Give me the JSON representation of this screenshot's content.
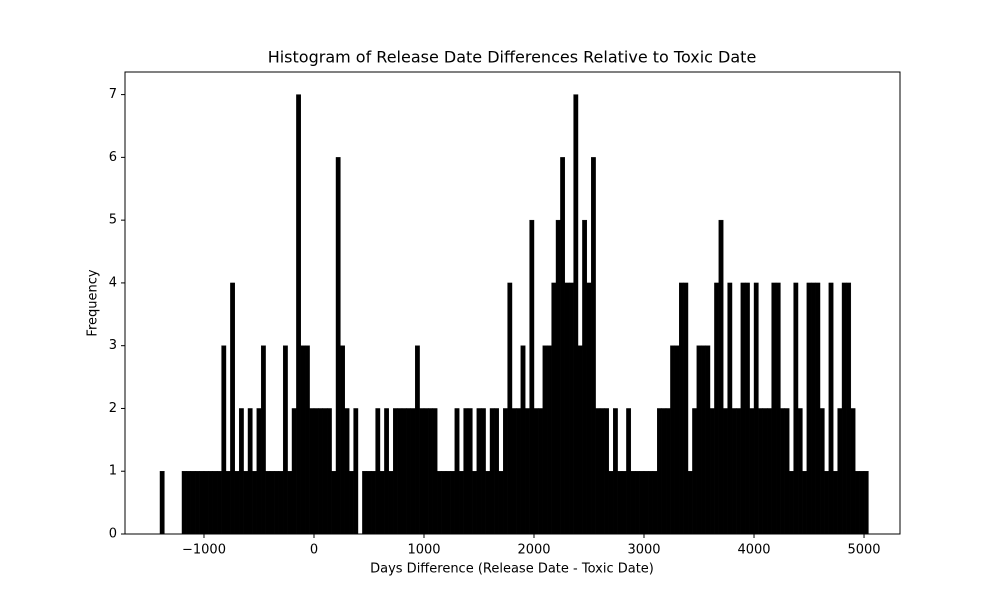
{
  "chart_data": {
    "type": "histogram",
    "title": "Histogram of Release Date Differences Relative to Toxic Date",
    "x_label": "Days Difference (Release Date - Toxic Date)",
    "y_label": "Frequency",
    "color": "#000000",
    "bins": [
      -1400,
      -1360,
      -1320,
      -1280,
      -1240,
      -1200,
      -1160,
      -1120,
      -1080,
      -1040,
      -1000,
      -960,
      -920,
      -880,
      -840,
      -800,
      -760,
      -720,
      -680,
      -640,
      -600,
      -560,
      -520,
      -480,
      -440,
      -400,
      -360,
      -320,
      -280,
      -240,
      -200,
      -160,
      -120,
      -80,
      -40,
      0,
      40,
      80,
      120,
      160,
      200,
      240,
      280,
      320,
      360,
      400,
      440,
      480,
      520,
      560,
      600,
      640,
      680,
      720,
      760,
      800,
      840,
      880,
      920,
      960,
      1000,
      1040,
      1080,
      1120,
      1160,
      1200,
      1240,
      1280,
      1320,
      1360,
      1400,
      1440,
      1480,
      1520,
      1560,
      1600,
      1640,
      1680,
      1720,
      1760,
      1800,
      1840,
      1880,
      1920,
      1960,
      2000,
      2040,
      2080,
      2120,
      2160,
      2200,
      2240,
      2280,
      2320,
      2360,
      2400,
      2440,
      2480,
      2520,
      2560,
      2600,
      2640,
      2680,
      2720,
      2760,
      2800,
      2840,
      2880,
      2920,
      2960,
      3000,
      3040,
      3080,
      3120,
      3160,
      3200,
      3240,
      3280,
      3320,
      3360,
      3400,
      3440,
      3480,
      3520,
      3560,
      3600,
      3640,
      3680,
      3720,
      3760,
      3800,
      3840,
      3880,
      3920,
      3960,
      4000,
      4040,
      4080,
      4120,
      4160,
      4200,
      4240,
      4280,
      4320,
      4360,
      4400,
      4440,
      4480,
      4520,
      4560,
      4600,
      4640,
      4680,
      4720,
      4760,
      4800,
      4840,
      4880,
      4920,
      4960,
      5000,
      5040
    ],
    "values": [
      1,
      0,
      0,
      0,
      0,
      1,
      1,
      1,
      1,
      1,
      1,
      1,
      1,
      1,
      3,
      1,
      4,
      1,
      2,
      1,
      2,
      1,
      2,
      3,
      1,
      1,
      1,
      1,
      3,
      1,
      2,
      7,
      3,
      3,
      2,
      2,
      2,
      2,
      2,
      1,
      6,
      3,
      2,
      1,
      2,
      0,
      1,
      1,
      1,
      2,
      1,
      2,
      1,
      2,
      2,
      2,
      2,
      2,
      3,
      2,
      2,
      2,
      2,
      1,
      1,
      1,
      1,
      2,
      1,
      2,
      2,
      1,
      2,
      2,
      1,
      2,
      2,
      1,
      2,
      4,
      2,
      2,
      3,
      2,
      5,
      2,
      2,
      3,
      3,
      4,
      5,
      6,
      4,
      4,
      7,
      3,
      5,
      4,
      6,
      2,
      2,
      2,
      1,
      2,
      1,
      1,
      2,
      1,
      1,
      1,
      1,
      1,
      1,
      2,
      2,
      2,
      3,
      3,
      4,
      4,
      1,
      2,
      3,
      3,
      3,
      2,
      4,
      5,
      2,
      4,
      2,
      2,
      4,
      4,
      2,
      4,
      2,
      2,
      2,
      4,
      4,
      2,
      2,
      1,
      4,
      2,
      1,
      4,
      4,
      4,
      2,
      1,
      4,
      1,
      2,
      4,
      4,
      2,
      1,
      1,
      1
    ],
    "xlim": [
      -1718,
      5327
    ],
    "xticks": [
      {
        "value": -1000,
        "label": "−1000"
      },
      0,
      1000,
      2000,
      3000,
      4000,
      5000
    ],
    "ylim": [
      0,
      7.36
    ],
    "yticks": [
      0,
      1,
      2,
      3,
      4,
      5,
      6,
      7
    ],
    "grid": false
  }
}
